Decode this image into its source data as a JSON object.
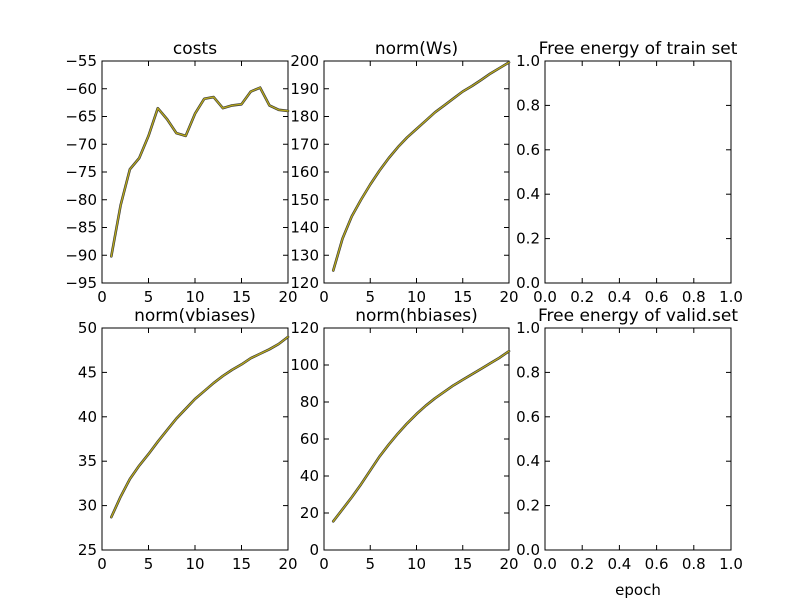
{
  "figure": {
    "line_color": "#b8a91c",
    "line_shadow_color": "#3a3a3a",
    "background": "#ffffff"
  },
  "chart_data": [
    {
      "type": "line",
      "title": "costs",
      "xlabel": "",
      "ylabel": "",
      "xlim": [
        0,
        20
      ],
      "ylim": [
        -95,
        -55
      ],
      "xticks": [
        0,
        5,
        10,
        15,
        20
      ],
      "yticks": [
        -95,
        -90,
        -85,
        -80,
        -75,
        -70,
        -65,
        -60,
        -55
      ],
      "series": [
        {
          "name": "costs",
          "x": [
            1,
            2,
            3,
            4,
            5,
            6,
            7,
            8,
            9,
            10,
            11,
            12,
            13,
            14,
            15,
            16,
            17,
            18,
            19,
            20
          ],
          "values": [
            -90.2,
            -81,
            -74.5,
            -72.5,
            -68.5,
            -63.5,
            -65.5,
            -68,
            -68.5,
            -64.5,
            -61.8,
            -61.5,
            -63.5,
            -63,
            -62.8,
            -60.5,
            -59.8,
            -63,
            -63.8,
            -64
          ]
        }
      ]
    },
    {
      "type": "line",
      "title": "norm(Ws)",
      "xlabel": "",
      "ylabel": "",
      "xlim": [
        0,
        20
      ],
      "ylim": [
        120,
        200
      ],
      "xticks": [
        0,
        5,
        10,
        15,
        20
      ],
      "yticks": [
        120,
        130,
        140,
        150,
        160,
        170,
        180,
        190,
        200
      ],
      "series": [
        {
          "name": "norm(Ws)",
          "x": [
            1,
            2,
            3,
            4,
            5,
            6,
            7,
            8,
            9,
            10,
            11,
            12,
            13,
            14,
            15,
            16,
            17,
            18,
            19,
            20
          ],
          "values": [
            124.5,
            136,
            144,
            150,
            155.5,
            160.5,
            165,
            169,
            172.5,
            175.5,
            178.5,
            181.5,
            184,
            186.5,
            189,
            191,
            193.2,
            195.5,
            197.5,
            199.5
          ]
        }
      ]
    },
    {
      "type": "line",
      "title": "Free energy of train set",
      "xlabel": "",
      "ylabel": "",
      "xlim": [
        0.0,
        1.0
      ],
      "ylim": [
        0.0,
        1.0
      ],
      "xticks": [
        "0.0",
        "0.2",
        "0.4",
        "0.6",
        "0.8",
        "1.0"
      ],
      "yticks": [
        "0.0",
        "0.2",
        "0.4",
        "0.6",
        "0.8",
        "1.0"
      ],
      "series": []
    },
    {
      "type": "line",
      "title": "norm(vbiases)",
      "xlabel": "",
      "ylabel": "",
      "xlim": [
        0,
        20
      ],
      "ylim": [
        25,
        50
      ],
      "xticks": [
        0,
        5,
        10,
        15,
        20
      ],
      "yticks": [
        25,
        30,
        35,
        40,
        45,
        50
      ],
      "series": [
        {
          "name": "norm(vbiases)",
          "x": [
            1,
            2,
            3,
            4,
            5,
            6,
            7,
            8,
            9,
            10,
            11,
            12,
            13,
            14,
            15,
            16,
            17,
            18,
            19,
            20
          ],
          "values": [
            28.7,
            31,
            33,
            34.5,
            35.8,
            37.2,
            38.5,
            39.8,
            40.9,
            42,
            42.9,
            43.8,
            44.6,
            45.3,
            45.9,
            46.6,
            47.1,
            47.6,
            48.2,
            49
          ]
        }
      ]
    },
    {
      "type": "line",
      "title": "norm(hbiases)",
      "xlabel": "",
      "ylabel": "",
      "xlim": [
        0,
        20
      ],
      "ylim": [
        0,
        120
      ],
      "xticks": [
        0,
        5,
        10,
        15,
        20
      ],
      "yticks": [
        0,
        20,
        40,
        60,
        80,
        100,
        120
      ],
      "series": [
        {
          "name": "norm(hbiases)",
          "x": [
            1,
            2,
            3,
            4,
            5,
            6,
            7,
            8,
            9,
            10,
            11,
            12,
            13,
            14,
            15,
            16,
            17,
            18,
            19,
            20
          ],
          "values": [
            15.5,
            22,
            28.5,
            35.5,
            43,
            50.5,
            57,
            63,
            68.5,
            73.5,
            78,
            82,
            85.5,
            89,
            92,
            95,
            98,
            101,
            104,
            107.5
          ]
        }
      ]
    },
    {
      "type": "line",
      "title": "Free energy of valid.set",
      "xlabel": "epoch",
      "ylabel": "",
      "xlim": [
        0.0,
        1.0
      ],
      "ylim": [
        0.0,
        1.0
      ],
      "xticks": [
        "0.0",
        "0.2",
        "0.4",
        "0.6",
        "0.8",
        "1.0"
      ],
      "yticks": [
        "0.0",
        "0.2",
        "0.4",
        "0.6",
        "0.8",
        "1.0"
      ],
      "series": []
    }
  ]
}
